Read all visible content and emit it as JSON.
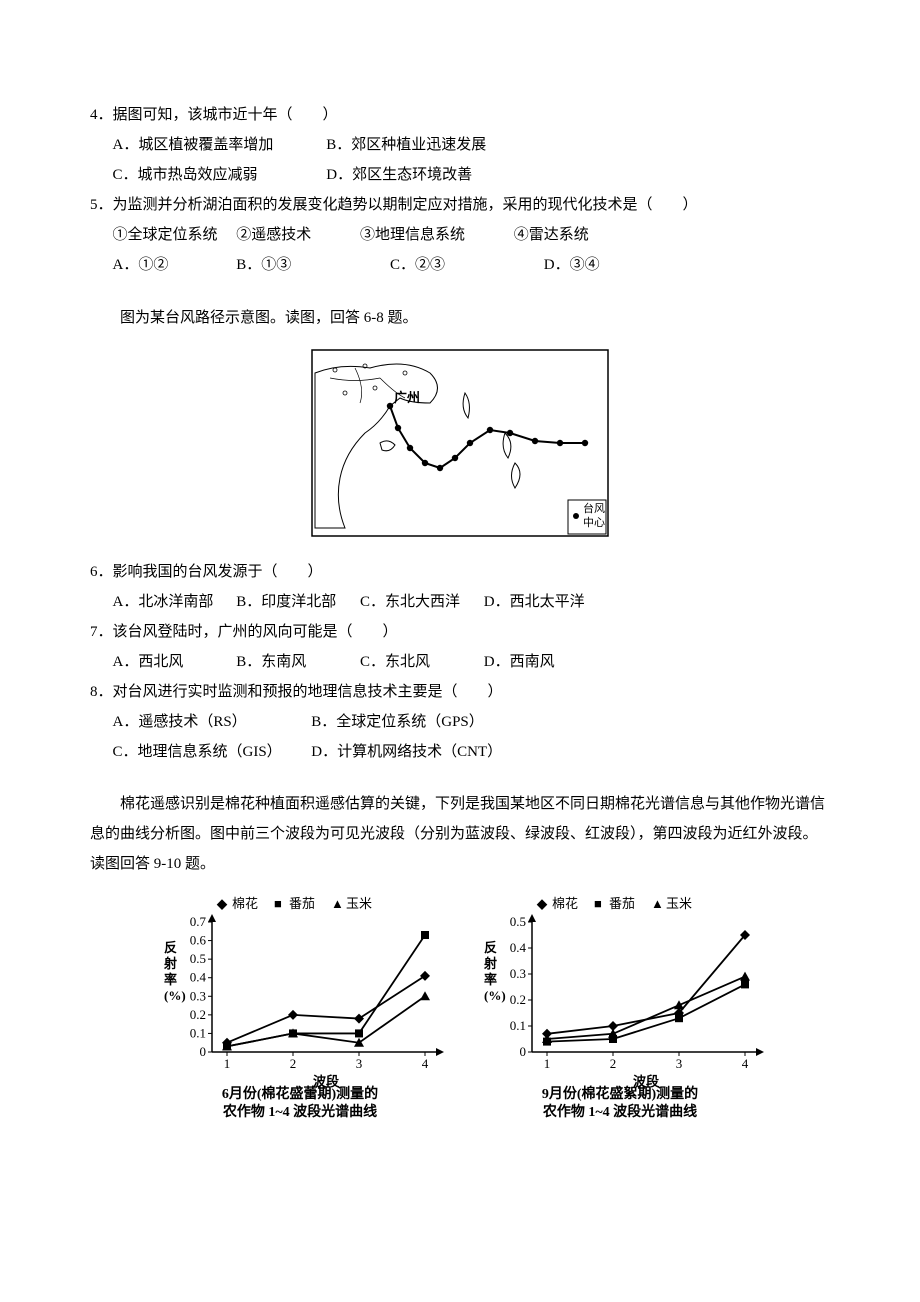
{
  "q4": {
    "stem": "4．据图可知，该城市近十年（　　）",
    "A": "A．城区植被覆盖率增加",
    "B": "B．郊区种植业迅速发展",
    "C": "C．城市热岛效应减弱",
    "D": "D．郊区生态环境改善"
  },
  "q5": {
    "stem": "5．为监测并分析湖泊面积的发展变化趋势以期制定应对措施，采用的现代化技术是（　　）",
    "i1": "①全球定位系统",
    "i2": "②遥感技术",
    "i3": "③地理信息系统",
    "i4": "④雷达系统",
    "A": "A．①②",
    "B": "B．①③",
    "C": "C．②③",
    "D": "D．③④"
  },
  "intro68": "图为某台风路径示意图。读图，回答 6-8 题。",
  "map": {
    "label_gz": "广州",
    "legend": "台风\n中心",
    "border_color": "#000000",
    "land_fill": "#ffffff",
    "line_color": "#000000",
    "track_points": [
      [
        275,
        95
      ],
      [
        250,
        95
      ],
      [
        225,
        93
      ],
      [
        200,
        85
      ],
      [
        180,
        82
      ],
      [
        160,
        95
      ],
      [
        145,
        110
      ],
      [
        130,
        120
      ],
      [
        115,
        115
      ],
      [
        100,
        100
      ],
      [
        88,
        80
      ],
      [
        80,
        58
      ]
    ]
  },
  "q6": {
    "stem": "6．影响我国的台风发源于（　　）",
    "A": "A．北冰洋南部",
    "B": "B．印度洋北部",
    "C": "C．东北大西洋",
    "D": "D．西北太平洋"
  },
  "q7": {
    "stem": "7．该台风登陆时，广州的风向可能是（　　）",
    "A": "A．西北风",
    "B": "B．东南风",
    "C": "C．东北风",
    "D": "D．西南风"
  },
  "q8": {
    "stem": "8．对台风进行实时监测和预报的地理信息技术主要是（　　）",
    "A": "A．遥感技术（RS）",
    "B": "B．全球定位系统（GPS）",
    "C": "C．地理信息系统（GIS）",
    "D": "D．计算机网络技术（CNT）"
  },
  "intro910": "棉花遥感识别是棉花种植面积遥感估算的关键，下列是我国某地区不同日期棉花光谱信息与其他作物光谱信息的曲线分析图。图中前三个波段为可见光波段（分别为蓝波段、绿波段、红波段），第四波段为近红外波段。读图回答 9-10 题。",
  "legend_series": {
    "s1": "棉花",
    "s2": "番茄",
    "s3": "玉米"
  },
  "chart6": {
    "ylabel": "反\n射\n率\n(%)",
    "xlabel": "波段",
    "caption1": "6月份(棉花盛蕾期)测量的",
    "caption2": "农作物 1~4 波段光谱曲线",
    "ymax": 0.7,
    "yticks": [
      0,
      0.1,
      0.2,
      0.3,
      0.4,
      0.5,
      0.6,
      0.7
    ],
    "xticks": [
      1,
      2,
      3,
      4
    ],
    "cotton": [
      0.05,
      0.2,
      0.18,
      0.41
    ],
    "tomato": [
      0.03,
      0.1,
      0.1,
      0.63
    ],
    "corn": [
      0.03,
      0.1,
      0.05,
      0.3
    ],
    "axis_color": "#000000",
    "line_color": "#000000",
    "font_size": 13
  },
  "chart9": {
    "ylabel": "反\n射\n率\n(%)",
    "xlabel": "波段",
    "caption1": "9月份(棉花盛絮期)测量的",
    "caption2": "农作物 1~4 波段光谱曲线",
    "ymax": 0.5,
    "yticks": [
      0,
      0.1,
      0.2,
      0.3,
      0.4,
      0.5
    ],
    "xticks": [
      1,
      2,
      3,
      4
    ],
    "cotton": [
      0.07,
      0.1,
      0.15,
      0.45
    ],
    "tomato": [
      0.04,
      0.05,
      0.13,
      0.26
    ],
    "corn": [
      0.05,
      0.07,
      0.18,
      0.29
    ],
    "axis_color": "#000000",
    "line_color": "#000000",
    "font_size": 13
  }
}
